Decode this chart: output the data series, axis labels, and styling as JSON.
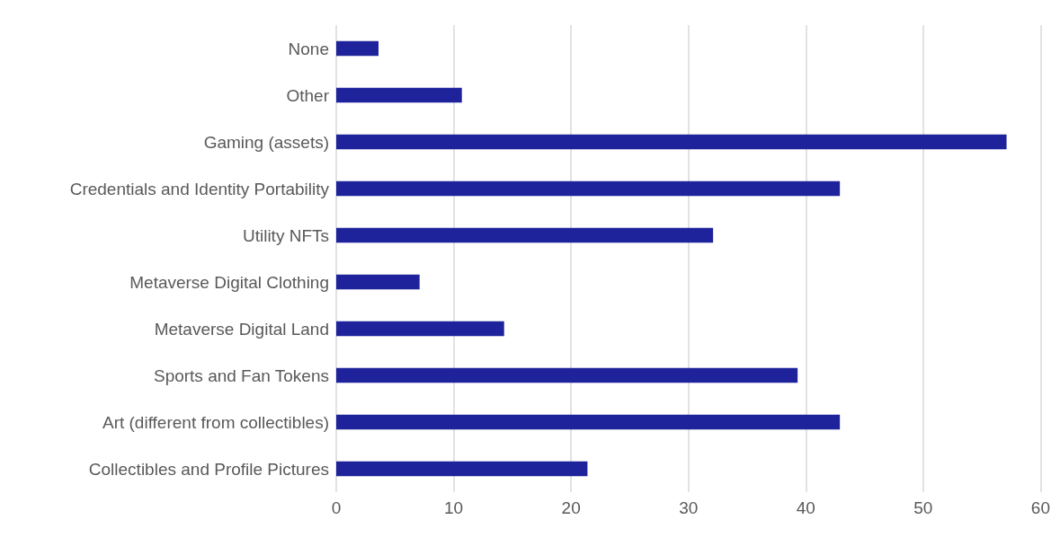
{
  "chart_data": {
    "type": "bar",
    "orientation": "horizontal",
    "categories": [
      "None",
      "Other",
      "Gaming (assets)",
      "Credentials and Identity Portability",
      "Utility NFTs",
      "Metaverse Digital Clothing",
      "Metaverse Digital Land",
      "Sports and Fan Tokens",
      "Art (different from collectibles)",
      "Collectibles and Profile Pictures"
    ],
    "values": [
      3.6,
      10.7,
      57.1,
      42.9,
      32.1,
      7.1,
      14.3,
      39.3,
      42.9,
      21.4
    ],
    "color": "#1f239b",
    "xlim": [
      0,
      60
    ],
    "xticks": [
      0,
      10,
      20,
      30,
      40,
      50,
      60
    ],
    "grid": "x"
  }
}
